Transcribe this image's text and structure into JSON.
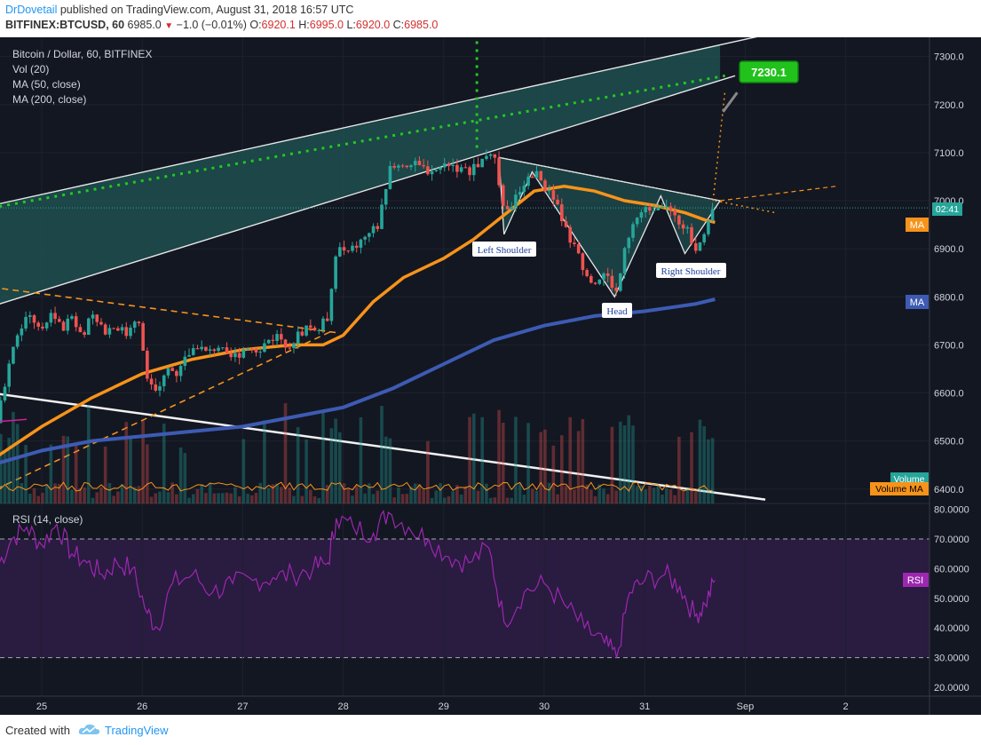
{
  "header": {
    "author": "DrDovetail",
    "published": "published on TradingView.com, August 31, 2018 16:57 UTC",
    "symbol": "BITFINEX:BTCUSD, 60",
    "last": "6985.0",
    "change": "−1.0 (−0.01%)",
    "o_label": "O:",
    "o": "6920.1",
    "h_label": "H:",
    "h": "6995.0",
    "l_label": "L:",
    "l": "6920.0",
    "c_label": "C:",
    "c": "6985.0"
  },
  "legend": {
    "title": "Bitcoin / Dollar, 60, BITFINEX",
    "vol": "Vol (20)",
    "ma50": "MA (50, close)",
    "ma200": "MA (200, close)",
    "rsi": "RSI (14, close)"
  },
  "annotations": {
    "left_shoulder": "Left Shoulder",
    "head": "Head",
    "right_shoulder": "Right Shoulder",
    "target": "7230.1"
  },
  "badges": {
    "time": "02:41",
    "ma": "MA",
    "ma_blue": "MA",
    "volume": "Volume",
    "volume_ma": "Volume MA",
    "rsi": "RSI"
  },
  "footer": {
    "created": "Created with",
    "brand": "TradingView"
  },
  "colors": {
    "background": "#131722",
    "ma50": "#f7931a",
    "ma200": "#3d5bb3",
    "up": "#26a69a",
    "down": "#ef5350",
    "rsi": "#9c27b0",
    "wedge_fill": "#1f4f4f",
    "target_badge": "#21c21c"
  },
  "chart_data": {
    "type": "candlestick",
    "x_tick_labels": [
      "25",
      "26",
      "27",
      "28",
      "29",
      "30",
      "31",
      "Sep",
      "2"
    ],
    "price_axis": {
      "ticks": [
        "7300.0",
        "7200.0",
        "7100.0",
        "7000.0",
        "6900.0",
        "6800.0",
        "6700.0",
        "6600.0",
        "6500.0",
        "6400.0"
      ],
      "range": [
        6370,
        7340
      ]
    },
    "rsi_axis": {
      "ticks": [
        "80.0000",
        "70.0000",
        "60.0000",
        "50.0000",
        "40.0000",
        "30.0000",
        "20.0000"
      ],
      "range": [
        17,
        82
      ],
      "band": [
        30,
        70
      ]
    },
    "price_path": [
      {
        "t": 24.55,
        "p": 6540
      },
      {
        "t": 24.62,
        "p": 6600
      },
      {
        "t": 24.7,
        "p": 6690
      },
      {
        "t": 24.8,
        "p": 6740
      },
      {
        "t": 24.9,
        "p": 6760
      },
      {
        "t": 25.0,
        "p": 6720
      },
      {
        "t": 25.1,
        "p": 6770
      },
      {
        "t": 25.2,
        "p": 6730
      },
      {
        "t": 25.3,
        "p": 6760
      },
      {
        "t": 25.4,
        "p": 6720
      },
      {
        "t": 25.5,
        "p": 6760
      },
      {
        "t": 25.6,
        "p": 6730
      },
      {
        "t": 25.75,
        "p": 6740
      },
      {
        "t": 25.85,
        "p": 6720
      },
      {
        "t": 25.95,
        "p": 6760
      },
      {
        "t": 26.05,
        "p": 6640
      },
      {
        "t": 26.15,
        "p": 6590
      },
      {
        "t": 26.25,
        "p": 6650
      },
      {
        "t": 26.35,
        "p": 6640
      },
      {
        "t": 26.45,
        "p": 6680
      },
      {
        "t": 26.55,
        "p": 6700
      },
      {
        "t": 26.65,
        "p": 6680
      },
      {
        "t": 26.75,
        "p": 6700
      },
      {
        "t": 26.85,
        "p": 6670
      },
      {
        "t": 26.95,
        "p": 6680
      },
      {
        "t": 27.05,
        "p": 6700
      },
      {
        "t": 27.15,
        "p": 6690
      },
      {
        "t": 27.25,
        "p": 6710
      },
      {
        "t": 27.35,
        "p": 6720
      },
      {
        "t": 27.45,
        "p": 6700
      },
      {
        "t": 27.55,
        "p": 6720
      },
      {
        "t": 27.65,
        "p": 6740
      },
      {
        "t": 27.75,
        "p": 6730
      },
      {
        "t": 27.85,
        "p": 6760
      },
      {
        "t": 27.93,
        "p": 6900
      },
      {
        "t": 28.05,
        "p": 6890
      },
      {
        "t": 28.2,
        "p": 6920
      },
      {
        "t": 28.35,
        "p": 6950
      },
      {
        "t": 28.45,
        "p": 7060
      },
      {
        "t": 28.6,
        "p": 7080
      },
      {
        "t": 28.75,
        "p": 7070
      },
      {
        "t": 28.9,
        "p": 7060
      },
      {
        "t": 29.05,
        "p": 7080
      },
      {
        "t": 29.2,
        "p": 7060
      },
      {
        "t": 29.35,
        "p": 7070
      },
      {
        "t": 29.45,
        "p": 7110
      },
      {
        "t": 29.52,
        "p": 7080
      },
      {
        "t": 29.6,
        "p": 6970
      },
      {
        "t": 29.7,
        "p": 7000
      },
      {
        "t": 29.8,
        "p": 7040
      },
      {
        "t": 29.9,
        "p": 7060
      },
      {
        "t": 30.0,
        "p": 7030
      },
      {
        "t": 30.1,
        "p": 7000
      },
      {
        "t": 30.2,
        "p": 6950
      },
      {
        "t": 30.3,
        "p": 6900
      },
      {
        "t": 30.4,
        "p": 6860
      },
      {
        "t": 30.5,
        "p": 6830
      },
      {
        "t": 30.6,
        "p": 6850
      },
      {
        "t": 30.72,
        "p": 6810
      },
      {
        "t": 30.8,
        "p": 6910
      },
      {
        "t": 30.9,
        "p": 6960
      },
      {
        "t": 31.0,
        "p": 6980
      },
      {
        "t": 31.1,
        "p": 6990
      },
      {
        "t": 31.2,
        "p": 7000
      },
      {
        "t": 31.3,
        "p": 6960
      },
      {
        "t": 31.4,
        "p": 6950
      },
      {
        "t": 31.5,
        "p": 6900
      },
      {
        "t": 31.6,
        "p": 6940
      },
      {
        "t": 31.7,
        "p": 6985
      }
    ],
    "ma50": [
      {
        "t": 24.5,
        "p": 6460
      },
      {
        "t": 25.0,
        "p": 6530
      },
      {
        "t": 25.5,
        "p": 6590
      },
      {
        "t": 26.0,
        "p": 6640
      },
      {
        "t": 26.5,
        "p": 6670
      },
      {
        "t": 27.0,
        "p": 6690
      },
      {
        "t": 27.5,
        "p": 6700
      },
      {
        "t": 27.8,
        "p": 6700
      },
      {
        "t": 28.0,
        "p": 6720
      },
      {
        "t": 28.3,
        "p": 6790
      },
      {
        "t": 28.6,
        "p": 6840
      },
      {
        "t": 29.0,
        "p": 6880
      },
      {
        "t": 29.3,
        "p": 6920
      },
      {
        "t": 29.6,
        "p": 6970
      },
      {
        "t": 29.9,
        "p": 7020
      },
      {
        "t": 30.2,
        "p": 7030
      },
      {
        "t": 30.5,
        "p": 7020
      },
      {
        "t": 30.8,
        "p": 7000
      },
      {
        "t": 31.1,
        "p": 6990
      },
      {
        "t": 31.4,
        "p": 6975
      },
      {
        "t": 31.6,
        "p": 6960
      },
      {
        "t": 31.7,
        "p": 6955
      }
    ],
    "ma200": [
      {
        "t": 24.5,
        "p": 6450
      },
      {
        "t": 25.0,
        "p": 6480
      },
      {
        "t": 25.5,
        "p": 6500
      },
      {
        "t": 26.0,
        "p": 6510
      },
      {
        "t": 26.5,
        "p": 6520
      },
      {
        "t": 27.0,
        "p": 6530
      },
      {
        "t": 27.5,
        "p": 6550
      },
      {
        "t": 28.0,
        "p": 6570
      },
      {
        "t": 28.5,
        "p": 6610
      },
      {
        "t": 29.0,
        "p": 6660
      },
      {
        "t": 29.5,
        "p": 6710
      },
      {
        "t": 30.0,
        "p": 6740
      },
      {
        "t": 30.5,
        "p": 6760
      },
      {
        "t": 31.0,
        "p": 6770
      },
      {
        "t": 31.5,
        "p": 6785
      },
      {
        "t": 31.7,
        "p": 6795
      }
    ],
    "rsi": [
      {
        "t": 24.55,
        "v": 60
      },
      {
        "t": 24.7,
        "v": 70
      },
      {
        "t": 24.85,
        "v": 74
      },
      {
        "t": 25.0,
        "v": 68
      },
      {
        "t": 25.15,
        "v": 75
      },
      {
        "t": 25.3,
        "v": 65
      },
      {
        "t": 25.45,
        "v": 62
      },
      {
        "t": 25.6,
        "v": 58
      },
      {
        "t": 25.75,
        "v": 62
      },
      {
        "t": 25.9,
        "v": 60
      },
      {
        "t": 26.05,
        "v": 45
      },
      {
        "t": 26.15,
        "v": 40
      },
      {
        "t": 26.3,
        "v": 55
      },
      {
        "t": 26.5,
        "v": 58
      },
      {
        "t": 26.7,
        "v": 52
      },
      {
        "t": 26.9,
        "v": 55
      },
      {
        "t": 27.1,
        "v": 56
      },
      {
        "t": 27.3,
        "v": 57
      },
      {
        "t": 27.5,
        "v": 58
      },
      {
        "t": 27.7,
        "v": 60
      },
      {
        "t": 27.85,
        "v": 62
      },
      {
        "t": 27.93,
        "v": 77
      },
      {
        "t": 28.1,
        "v": 74
      },
      {
        "t": 28.3,
        "v": 72
      },
      {
        "t": 28.45,
        "v": 79
      },
      {
        "t": 28.65,
        "v": 74
      },
      {
        "t": 28.85,
        "v": 70
      },
      {
        "t": 29.05,
        "v": 64
      },
      {
        "t": 29.25,
        "v": 62
      },
      {
        "t": 29.45,
        "v": 67
      },
      {
        "t": 29.6,
        "v": 42
      },
      {
        "t": 29.8,
        "v": 52
      },
      {
        "t": 30.0,
        "v": 55
      },
      {
        "t": 30.2,
        "v": 48
      },
      {
        "t": 30.4,
        "v": 40
      },
      {
        "t": 30.6,
        "v": 35
      },
      {
        "t": 30.72,
        "v": 30
      },
      {
        "t": 30.85,
        "v": 52
      },
      {
        "t": 31.0,
        "v": 56
      },
      {
        "t": 31.2,
        "v": 58
      },
      {
        "t": 31.35,
        "v": 54
      },
      {
        "t": 31.5,
        "v": 44
      },
      {
        "t": 31.6,
        "v": 48
      },
      {
        "t": 31.7,
        "v": 56
      }
    ],
    "target_value": 7230.1
  }
}
